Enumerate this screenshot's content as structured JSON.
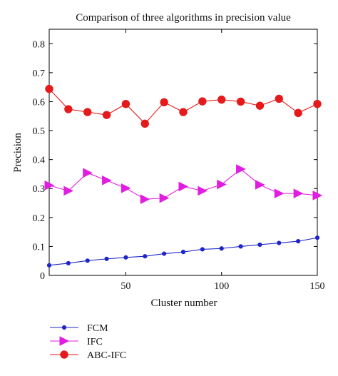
{
  "chart_data": {
    "type": "line",
    "title": "Comparison of three algorithms in precision value",
    "xlabel": "Cluster number",
    "ylabel": "Precision",
    "xlim": [
      10,
      150
    ],
    "ylim": [
      0,
      0.85
    ],
    "xticks": [
      50,
      100,
      150
    ],
    "yticks": [
      0,
      0.1,
      0.2,
      0.3,
      0.4,
      0.5,
      0.6,
      0.7,
      0.8
    ],
    "xtick_labels": [
      "50",
      "100",
      "150"
    ],
    "ytick_labels": [
      "0",
      "0.1",
      "0.2",
      "0.3",
      "0.4",
      "0.5",
      "0.6",
      "0.7",
      "0.8"
    ],
    "grid": false,
    "legend_position": "below-plot-left",
    "x": [
      10,
      20,
      30,
      40,
      50,
      60,
      70,
      80,
      90,
      100,
      110,
      120,
      130,
      140,
      150
    ],
    "series": [
      {
        "name": "FCM",
        "color": "#1f25c8",
        "marker": "dot",
        "values": [
          0.035,
          0.042,
          0.051,
          0.057,
          0.062,
          0.066,
          0.075,
          0.081,
          0.09,
          0.093,
          0.1,
          0.106,
          0.112,
          0.118,
          0.13
        ]
      },
      {
        "name": "IFC",
        "color": "#e01de0",
        "marker": "triangle-right",
        "values": [
          0.311,
          0.292,
          0.354,
          0.328,
          0.301,
          0.263,
          0.267,
          0.307,
          0.292,
          0.314,
          0.367,
          0.313,
          0.283,
          0.283,
          0.276
        ]
      },
      {
        "name": "ABC-IFC",
        "color": "#e51a1a",
        "marker": "circle",
        "values": [
          0.644,
          0.574,
          0.564,
          0.554,
          0.592,
          0.524,
          0.598,
          0.564,
          0.601,
          0.607,
          0.6,
          0.586,
          0.61,
          0.561,
          0.592
        ]
      }
    ]
  }
}
